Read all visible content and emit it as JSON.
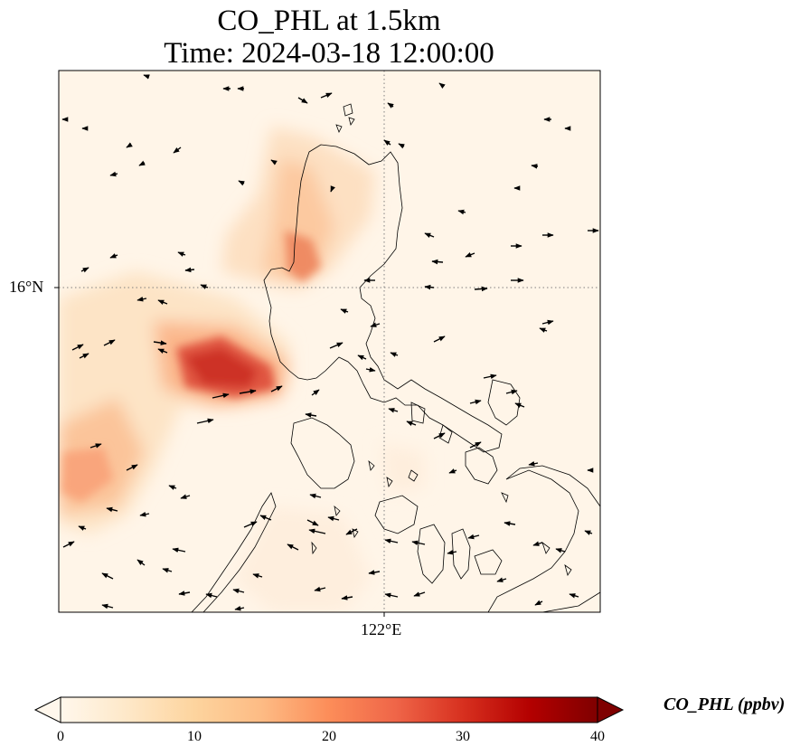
{
  "title": {
    "line1": "CO_PHL at 1.5km",
    "line2": "Time: 2024-03-18 12:00:00"
  },
  "map": {
    "variable": "CO_PHL",
    "level": "1.5km",
    "units": "ppbv",
    "projection": "PlateCarree",
    "gridlines": {
      "lat_label": "16°N",
      "lon_label": "122°E",
      "style": "dotted",
      "color": "#808080"
    },
    "features": [
      "coastlines",
      "wind-vectors",
      "CO concentration field"
    ],
    "plumes": [
      {
        "name": "west Luzon offshore max",
        "approx_ppbv": 30
      },
      {
        "name": "north-west Luzon coast",
        "approx_ppbv": 22
      },
      {
        "name": "south-west edge plume",
        "approx_ppbv": 16
      }
    ]
  },
  "colorbar": {
    "label": "CO_PHL (ppbv)",
    "ticks": [
      "0",
      "10",
      "20",
      "30",
      "40"
    ],
    "min": 0,
    "max": 40,
    "extend": "both",
    "colormap": "OrRd",
    "colors": [
      "#fff7ec",
      "#fee8c8",
      "#fdd49e",
      "#fdbb84",
      "#fc8d59",
      "#ef6548",
      "#d7301f",
      "#b30000",
      "#7f0000"
    ]
  }
}
